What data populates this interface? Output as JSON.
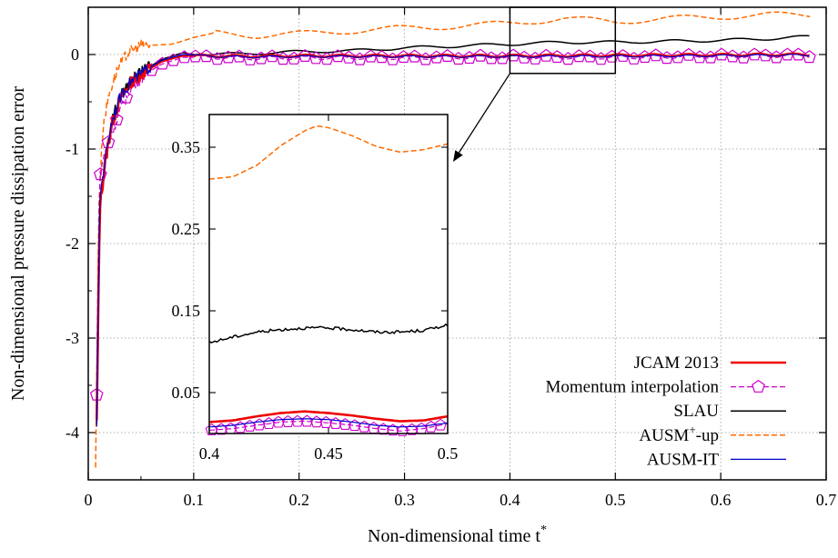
{
  "chart_data": {
    "type": "line",
    "xlabel": "Non-dimensional time t",
    "xlabel_superscript": "*",
    "ylabel": "Non-dimensional pressure dissipation error",
    "xlim": [
      0,
      0.7
    ],
    "ylim": [
      -4.5,
      0.5
    ],
    "xticks": [
      0,
      0.1,
      0.2,
      0.3,
      0.4,
      0.5,
      0.6,
      0.7
    ],
    "xtick_labels": [
      "0",
      "0.1",
      "0.2",
      "0.3",
      "0.4",
      "0.5",
      "0.6",
      "0.7"
    ],
    "yticks": [
      -4,
      -3,
      -2,
      -1,
      0
    ],
    "ytick_labels": [
      "-4",
      "-3",
      "-2",
      "-1",
      "0"
    ],
    "grid": true,
    "legend_position": "bottom-right",
    "series": [
      {
        "name": "JCAM 2013",
        "color": "#ee0000",
        "style": "solid",
        "width": 2.6,
        "base": [
          [
            0.008,
            -3.9
          ],
          [
            0.011,
            -1.6
          ],
          [
            0.016,
            -1.15
          ],
          [
            0.022,
            -0.75
          ],
          [
            0.03,
            -0.48
          ],
          [
            0.04,
            -0.3
          ],
          [
            0.055,
            -0.17
          ],
          [
            0.07,
            -0.07
          ],
          [
            0.09,
            -0.01
          ],
          [
            0.12,
            -0.015
          ],
          [
            0.15,
            -0.02
          ],
          [
            0.2,
            -0.015
          ],
          [
            0.3,
            -0.015
          ],
          [
            0.4,
            -0.015
          ],
          [
            0.5,
            -0.01
          ],
          [
            0.6,
            -0.005
          ],
          [
            0.685,
            0.0
          ]
        ],
        "osc_amp": 0.012,
        "osc_period": 0.033,
        "osc_start": 0.1
      },
      {
        "name": "Momentum interpolation",
        "color": "#cc00cc",
        "style": "dashed",
        "width": 1.2,
        "marker": "pentagon",
        "base": [
          [
            0.008,
            -3.6
          ],
          [
            0.011,
            -1.3
          ],
          [
            0.015,
            -1.05
          ],
          [
            0.02,
            -0.9
          ],
          [
            0.03,
            -0.6
          ],
          [
            0.04,
            -0.36
          ],
          [
            0.055,
            -0.2
          ],
          [
            0.07,
            -0.1
          ],
          [
            0.09,
            -0.03
          ],
          [
            0.12,
            -0.03
          ],
          [
            0.15,
            -0.04
          ],
          [
            0.2,
            -0.035
          ],
          [
            0.3,
            -0.035
          ],
          [
            0.4,
            -0.03
          ],
          [
            0.5,
            -0.03
          ],
          [
            0.6,
            -0.02
          ],
          [
            0.685,
            -0.01
          ]
        ],
        "osc_amp": 0.018,
        "osc_period": 0.033,
        "osc_start": 0.1
      },
      {
        "name": "SLAU",
        "color": "#000000",
        "style": "solid",
        "width": 1.5,
        "base": [
          [
            0.008,
            -3.9
          ],
          [
            0.011,
            -1.6
          ],
          [
            0.016,
            -1.1
          ],
          [
            0.022,
            -0.7
          ],
          [
            0.03,
            -0.45
          ],
          [
            0.04,
            -0.28
          ],
          [
            0.055,
            -0.15
          ],
          [
            0.07,
            -0.05
          ],
          [
            0.09,
            0.02
          ],
          [
            0.12,
            0.0
          ],
          [
            0.15,
            0.01
          ],
          [
            0.2,
            0.03
          ],
          [
            0.25,
            0.04
          ],
          [
            0.3,
            0.07
          ],
          [
            0.35,
            0.09
          ],
          [
            0.4,
            0.11
          ],
          [
            0.45,
            0.13
          ],
          [
            0.5,
            0.13
          ],
          [
            0.55,
            0.14
          ],
          [
            0.6,
            0.15
          ],
          [
            0.65,
            0.17
          ],
          [
            0.685,
            0.19
          ]
        ],
        "osc_amp": 0.015,
        "osc_period": 0.06,
        "osc_start": 0.09
      },
      {
        "name": "AUSM+-up",
        "color": "#ff6a00",
        "style": "dashed",
        "width": 1.5,
        "base": [
          [
            0.007,
            -4.35
          ],
          [
            0.01,
            -1.6
          ],
          [
            0.014,
            -0.75
          ],
          [
            0.02,
            -0.4
          ],
          [
            0.028,
            -0.15
          ],
          [
            0.038,
            0.02
          ],
          [
            0.05,
            0.1
          ],
          [
            0.065,
            0.1
          ],
          [
            0.08,
            0.11
          ],
          [
            0.1,
            0.18
          ],
          [
            0.12,
            0.23
          ],
          [
            0.14,
            0.22
          ],
          [
            0.16,
            0.2
          ],
          [
            0.2,
            0.22
          ],
          [
            0.25,
            0.25
          ],
          [
            0.3,
            0.28
          ],
          [
            0.35,
            0.3
          ],
          [
            0.4,
            0.33
          ],
          [
            0.45,
            0.38
          ],
          [
            0.5,
            0.35
          ],
          [
            0.55,
            0.38
          ],
          [
            0.6,
            0.4
          ],
          [
            0.65,
            0.42
          ],
          [
            0.685,
            0.42
          ]
        ],
        "osc_amp": 0.03,
        "osc_period": 0.09,
        "osc_start": 0.12
      },
      {
        "name": "AUSM-IT",
        "color": "#0000cc",
        "style": "solid",
        "width": 1.2,
        "base": [
          [
            0.008,
            -3.9
          ],
          [
            0.011,
            -1.5
          ],
          [
            0.016,
            -1.12
          ],
          [
            0.022,
            -0.72
          ],
          [
            0.03,
            -0.46
          ],
          [
            0.04,
            -0.29
          ],
          [
            0.055,
            -0.16
          ],
          [
            0.07,
            -0.06
          ],
          [
            0.09,
            0.0
          ],
          [
            0.12,
            -0.02
          ],
          [
            0.15,
            -0.025
          ],
          [
            0.2,
            -0.02
          ],
          [
            0.3,
            -0.02
          ],
          [
            0.4,
            -0.02
          ],
          [
            0.5,
            -0.018
          ],
          [
            0.6,
            -0.012
          ],
          [
            0.685,
            -0.005
          ]
        ],
        "osc_amp": 0.01,
        "osc_period": 0.033,
        "osc_start": 0.1
      }
    ],
    "inset": {
      "xlim": [
        0.4,
        0.5
      ],
      "ylim": [
        0.0,
        0.39
      ],
      "xticks": [
        0.4,
        0.45,
        0.5
      ],
      "xtick_labels": [
        "0.4",
        "0.45",
        "0.5"
      ],
      "yticks": [
        0.05,
        0.15,
        0.25,
        0.35
      ],
      "ytick_labels": [
        "0.05",
        "0.15",
        "0.25",
        "0.35"
      ],
      "zoom_window": {
        "x": [
          0.4,
          0.5
        ],
        "y": [
          -0.2,
          0.5
        ]
      },
      "series": [
        {
          "name": "JCAM 2013",
          "color": "#ee0000",
          "width": 2.6,
          "dash": "",
          "points": [
            [
              0.4,
              0.014
            ],
            [
              0.41,
              0.016
            ],
            [
              0.42,
              0.021
            ],
            [
              0.43,
              0.025
            ],
            [
              0.44,
              0.027
            ],
            [
              0.45,
              0.025
            ],
            [
              0.46,
              0.022
            ],
            [
              0.47,
              0.018
            ],
            [
              0.48,
              0.015
            ],
            [
              0.49,
              0.016
            ],
            [
              0.5,
              0.021
            ]
          ]
        },
        {
          "name": "Momentum interpolation",
          "color": "#cc00cc",
          "width": 1.2,
          "dash": "6 3",
          "points": [
            [
              0.4,
              0.004
            ],
            [
              0.41,
              0.006
            ],
            [
              0.42,
              0.01
            ],
            [
              0.43,
              0.014
            ],
            [
              0.44,
              0.015
            ],
            [
              0.45,
              0.013
            ],
            [
              0.46,
              0.01
            ],
            [
              0.47,
              0.006
            ],
            [
              0.48,
              0.003
            ],
            [
              0.49,
              0.006
            ],
            [
              0.5,
              0.012
            ]
          ],
          "markers": [
            0.401,
            0.405,
            0.409,
            0.413,
            0.417,
            0.421,
            0.425,
            0.429,
            0.433,
            0.437,
            0.441,
            0.445,
            0.449,
            0.453,
            0.457,
            0.461,
            0.465,
            0.469,
            0.473,
            0.477,
            0.481,
            0.485,
            0.489,
            0.493,
            0.497
          ]
        },
        {
          "name": "SLAU",
          "color": "#000000",
          "width": 1.5,
          "dash": "",
          "points": [
            [
              0.4,
              0.111
            ],
            [
              0.41,
              0.118
            ],
            [
              0.42,
              0.124
            ],
            [
              0.43,
              0.127
            ],
            [
              0.44,
              0.129
            ],
            [
              0.45,
              0.129
            ],
            [
              0.46,
              0.127
            ],
            [
              0.47,
              0.124
            ],
            [
              0.48,
              0.124
            ],
            [
              0.49,
              0.126
            ],
            [
              0.5,
              0.133
            ]
          ],
          "noise": 0.0018
        },
        {
          "name": "AUSM+-up",
          "color": "#ff6a00",
          "width": 1.5,
          "dash": "6 3",
          "points": [
            [
              0.4,
              0.311
            ],
            [
              0.41,
              0.314
            ],
            [
              0.42,
              0.328
            ],
            [
              0.43,
              0.352
            ],
            [
              0.44,
              0.37
            ],
            [
              0.445,
              0.376
            ],
            [
              0.45,
              0.374
            ],
            [
              0.46,
              0.364
            ],
            [
              0.47,
              0.351
            ],
            [
              0.48,
              0.344
            ],
            [
              0.49,
              0.347
            ],
            [
              0.5,
              0.354
            ]
          ]
        },
        {
          "name": "AUSM-IT",
          "color": "#0000cc",
          "width": 1.2,
          "dash": "",
          "points": [
            [
              0.4,
              0.008
            ],
            [
              0.41,
              0.01
            ],
            [
              0.42,
              0.014
            ],
            [
              0.43,
              0.017
            ],
            [
              0.44,
              0.018
            ],
            [
              0.45,
              0.017
            ],
            [
              0.46,
              0.014
            ],
            [
              0.47,
              0.01
            ],
            [
              0.48,
              0.008
            ],
            [
              0.49,
              0.009
            ],
            [
              0.5,
              0.013
            ]
          ]
        }
      ]
    }
  }
}
